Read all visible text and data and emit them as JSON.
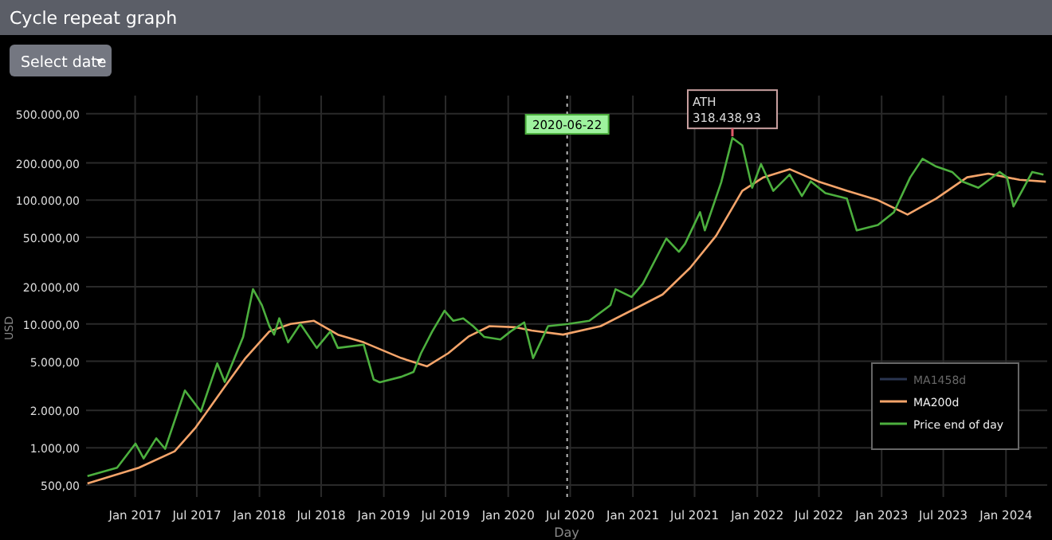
{
  "chart_data": {
    "type": "line",
    "title": "Cycle repeat graph",
    "xlabel": "Day",
    "ylabel": "USD",
    "log": "y",
    "grid": true,
    "legend": "bottom right",
    "line_style": "solid",
    "xlim": [
      "2016-08-10",
      "2024-05-01"
    ],
    "xticks": [
      {
        "value": "2017-01-01",
        "label": "Jan 2017"
      },
      {
        "value": "2017-07-01",
        "label": "Jul 2017"
      },
      {
        "value": "2018-01-01",
        "label": "Jan 2018"
      },
      {
        "value": "2018-07-01",
        "label": "Jul 2018"
      },
      {
        "value": "2019-01-01",
        "label": "Jan 2019"
      },
      {
        "value": "2019-07-01",
        "label": "Jul 2019"
      },
      {
        "value": "2020-01-01",
        "label": "Jan 2020"
      },
      {
        "value": "2020-07-01",
        "label": "Jul 2020"
      },
      {
        "value": "2021-01-01",
        "label": "Jan 2021"
      },
      {
        "value": "2021-07-01",
        "label": "Jul 2021"
      },
      {
        "value": "2022-01-01",
        "label": "Jan 2022"
      },
      {
        "value": "2022-07-01",
        "label": "Jul 2022"
      },
      {
        "value": "2023-01-01",
        "label": "Jan 2023"
      },
      {
        "value": "2023-07-01",
        "label": "Jul 2023"
      },
      {
        "value": "2024-01-01",
        "label": "Jan 2024"
      }
    ],
    "ylim": [
      400,
      700000
    ],
    "yticks": [
      {
        "value": 500,
        "label": "500,00"
      },
      {
        "value": 1000,
        "label": "1.000,00"
      },
      {
        "value": 2000,
        "label": "2.000,00"
      },
      {
        "value": 5000,
        "label": "5.000,00"
      },
      {
        "value": 10000,
        "label": "10.000,00"
      },
      {
        "value": 20000,
        "label": "20.000,00"
      },
      {
        "value": 50000,
        "label": "50.000,00"
      },
      {
        "value": 100000,
        "label": "100.000,00"
      },
      {
        "value": 200000,
        "label": "200.000,00"
      },
      {
        "value": 500000,
        "label": "500.000,00"
      }
    ],
    "ref_lines": [
      {
        "axis": "x",
        "value": "2020-06-22",
        "label": "2020-06-22",
        "color": "#bbbbbb",
        "line_style": "dotted"
      }
    ],
    "annotations": [
      "Select date",
      {
        "text": "ATH\n318.438,93",
        "x": "2021-10-20",
        "y": 318438.93
      }
    ],
    "series": [
      {
        "name": "MA1458d",
        "color": "#2a3550"
      },
      {
        "name": "MA200d",
        "color": "#f4a46a",
        "x": [
          "2016-08-14",
          "2017-01-12",
          "2017-04-27",
          "2017-06-28",
          "2017-09-13",
          "2017-11-21",
          "2018-01-30",
          "2018-04-02",
          "2018-06-10",
          "2018-08-19",
          "2018-11-03",
          "2019-02-21",
          "2019-05-08",
          "2019-07-09",
          "2019-09-06",
          "2019-11-07",
          "2020-01-23",
          "2020-03-10",
          "2020-06-10",
          "2020-09-28",
          "2021-01-12",
          "2021-03-29",
          "2021-06-18",
          "2021-09-02",
          "2021-11-18",
          "2022-01-19",
          "2022-04-06",
          "2022-06-28",
          "2022-09-21",
          "2022-12-21",
          "2023-03-18",
          "2023-06-10",
          "2023-09-09",
          "2023-11-10",
          "2024-02-10",
          "2024-04-27"
        ],
        "values": [
          515,
          690,
          935,
          1460,
          2900,
          5300,
          8700,
          10000,
          10600,
          8200,
          7100,
          5300,
          4550,
          5800,
          7900,
          9600,
          9400,
          8850,
          8200,
          9600,
          13500,
          17300,
          28400,
          51500,
          119000,
          153000,
          178000,
          142000,
          119000,
          100000,
          76600,
          103000,
          153000,
          164000,
          146000,
          141000
        ]
      },
      {
        "name": "Price end of day",
        "color": "#4caf3e",
        "x": [
          "2016-08-14",
          "2016-11-09",
          "2017-01-02",
          "2017-01-26",
          "2017-03-04",
          "2017-03-30",
          "2017-05-27",
          "2017-07-13",
          "2017-08-30",
          "2017-09-21",
          "2017-11-14",
          "2017-12-13",
          "2018-01-08",
          "2018-01-30",
          "2018-02-13",
          "2018-02-28",
          "2018-03-26",
          "2018-05-01",
          "2018-06-18",
          "2018-07-28",
          "2018-08-19",
          "2018-11-03",
          "2018-12-02",
          "2018-12-20",
          "2019-02-21",
          "2019-03-29",
          "2019-04-20",
          "2019-05-23",
          "2019-06-28",
          "2019-07-24",
          "2019-08-22",
          "2019-09-20",
          "2019-10-23",
          "2019-12-09",
          "2020-01-08",
          "2020-02-17",
          "2020-03-14",
          "2020-04-27",
          "2020-06-25",
          "2020-08-26",
          "2020-10-27",
          "2020-11-11",
          "2020-12-28",
          "2021-01-30",
          "2021-04-09",
          "2021-05-16",
          "2021-06-03",
          "2021-07-17",
          "2021-07-31",
          "2021-09-17",
          "2021-10-20",
          "2021-11-18",
          "2021-12-17",
          "2022-01-12",
          "2022-02-17",
          "2022-04-06",
          "2022-05-12",
          "2022-06-07",
          "2022-07-20",
          "2022-09-21",
          "2022-10-20",
          "2022-12-21",
          "2023-02-06",
          "2023-03-26",
          "2023-05-01",
          "2023-06-10",
          "2023-07-27",
          "2023-08-25",
          "2023-10-12",
          "2023-12-13",
          "2024-01-04",
          "2024-01-23",
          "2024-02-17",
          "2024-03-18",
          "2024-04-20"
        ],
        "values": [
          590,
          690,
          1080,
          820,
          1190,
          980,
          2900,
          1960,
          4800,
          3400,
          7850,
          19100,
          14200,
          9600,
          8200,
          11100,
          7100,
          10000,
          6400,
          8700,
          6400,
          6800,
          3560,
          3380,
          3740,
          4100,
          5800,
          8700,
          12800,
          10600,
          11100,
          9600,
          7850,
          7500,
          8700,
          10300,
          5300,
          9600,
          10000,
          10600,
          14200,
          19100,
          16500,
          21100,
          49000,
          38300,
          44400,
          80000,
          57000,
          139000,
          318438.93,
          277000,
          126000,
          196000,
          119000,
          161000,
          108000,
          142000,
          114000,
          103000,
          57000,
          63000,
          80000,
          153000,
          216000,
          187000,
          169000,
          142000,
          126000,
          169000,
          153000,
          89000,
          119000,
          169000,
          161000
        ]
      }
    ]
  }
}
